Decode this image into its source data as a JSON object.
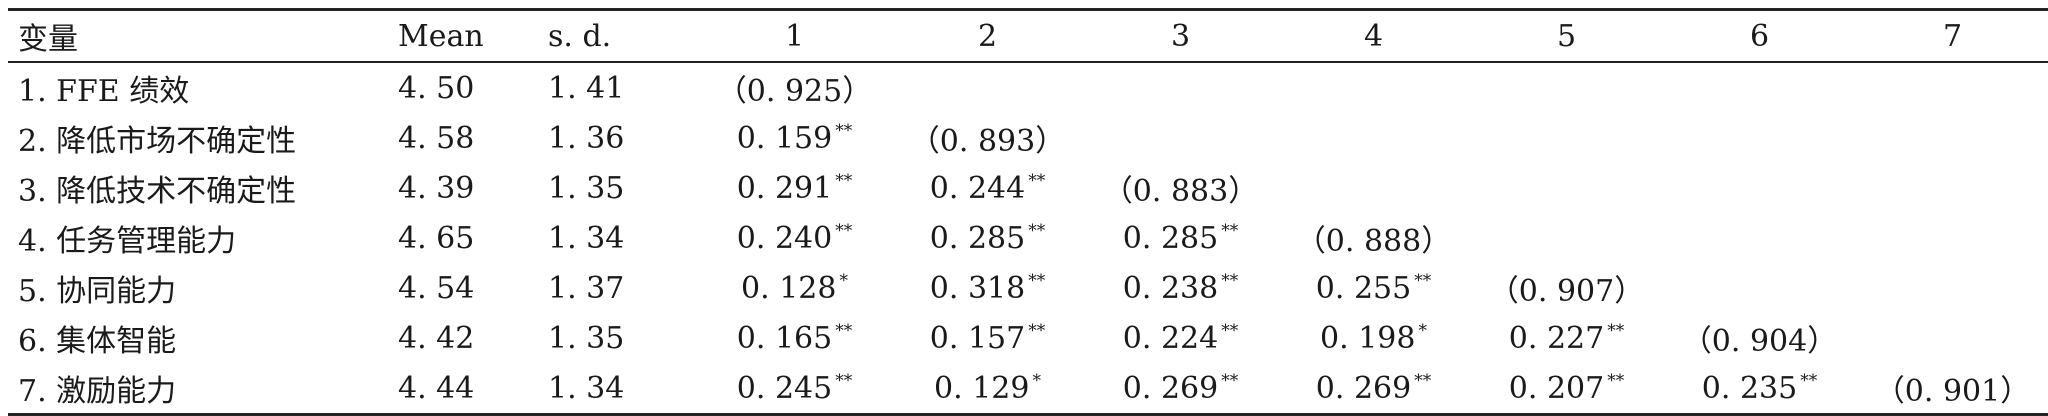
{
  "table": {
    "headers": [
      "变量",
      "Mean",
      "s. d.",
      "1",
      "2",
      "3",
      "4",
      "5",
      "6",
      "7"
    ],
    "rows": [
      {
        "label": "1. FFE 绩效",
        "mean": "4. 50",
        "sd": "1. 41",
        "cells": [
          {
            "v": "（0. 925）",
            "s": ""
          },
          {
            "v": "",
            "s": ""
          },
          {
            "v": "",
            "s": ""
          },
          {
            "v": "",
            "s": ""
          },
          {
            "v": "",
            "s": ""
          },
          {
            "v": "",
            "s": ""
          },
          {
            "v": "",
            "s": ""
          }
        ]
      },
      {
        "label": "2. 降低市场不确定性",
        "mean": "4. 58",
        "sd": "1. 36",
        "cells": [
          {
            "v": "0. 159",
            "s": "**"
          },
          {
            "v": "（0. 893）",
            "s": ""
          },
          {
            "v": "",
            "s": ""
          },
          {
            "v": "",
            "s": ""
          },
          {
            "v": "",
            "s": ""
          },
          {
            "v": "",
            "s": ""
          },
          {
            "v": "",
            "s": ""
          }
        ]
      },
      {
        "label": "3. 降低技术不确定性",
        "mean": "4. 39",
        "sd": "1. 35",
        "cells": [
          {
            "v": "0. 291",
            "s": "**"
          },
          {
            "v": "0. 244",
            "s": "**"
          },
          {
            "v": "（0. 883）",
            "s": ""
          },
          {
            "v": "",
            "s": ""
          },
          {
            "v": "",
            "s": ""
          },
          {
            "v": "",
            "s": ""
          },
          {
            "v": "",
            "s": ""
          }
        ]
      },
      {
        "label": "4. 任务管理能力",
        "mean": "4. 65",
        "sd": "1. 34",
        "cells": [
          {
            "v": "0. 240",
            "s": "**"
          },
          {
            "v": "0. 285",
            "s": "**"
          },
          {
            "v": "0. 285",
            "s": "**"
          },
          {
            "v": "（0. 888）",
            "s": ""
          },
          {
            "v": "",
            "s": ""
          },
          {
            "v": "",
            "s": ""
          },
          {
            "v": "",
            "s": ""
          }
        ]
      },
      {
        "label": "5. 协同能力",
        "mean": "4. 54",
        "sd": "1. 37",
        "cells": [
          {
            "v": "0. 128",
            "s": "*"
          },
          {
            "v": "0. 318",
            "s": "**"
          },
          {
            "v": "0. 238",
            "s": "**"
          },
          {
            "v": "0. 255",
            "s": "**"
          },
          {
            "v": "（0. 907）",
            "s": ""
          },
          {
            "v": "",
            "s": ""
          },
          {
            "v": "",
            "s": ""
          }
        ]
      },
      {
        "label": "6. 集体智能",
        "mean": "4. 42",
        "sd": "1. 35",
        "cells": [
          {
            "v": "0. 165",
            "s": "**"
          },
          {
            "v": "0. 157",
            "s": "**"
          },
          {
            "v": "0. 224",
            "s": "**"
          },
          {
            "v": "0. 198",
            "s": "*"
          },
          {
            "v": "0. 227",
            "s": "**"
          },
          {
            "v": "（0. 904）",
            "s": ""
          },
          {
            "v": "",
            "s": ""
          }
        ]
      },
      {
        "label": "7. 激励能力",
        "mean": "4. 44",
        "sd": "1. 34",
        "cells": [
          {
            "v": "0. 245",
            "s": "**"
          },
          {
            "v": "0. 129",
            "s": "*"
          },
          {
            "v": "0. 269",
            "s": "**"
          },
          {
            "v": "0. 269",
            "s": "**"
          },
          {
            "v": "0. 207",
            "s": "**"
          },
          {
            "v": "0. 235",
            "s": "**"
          },
          {
            "v": "（0. 901）",
            "s": ""
          }
        ]
      }
    ]
  }
}
